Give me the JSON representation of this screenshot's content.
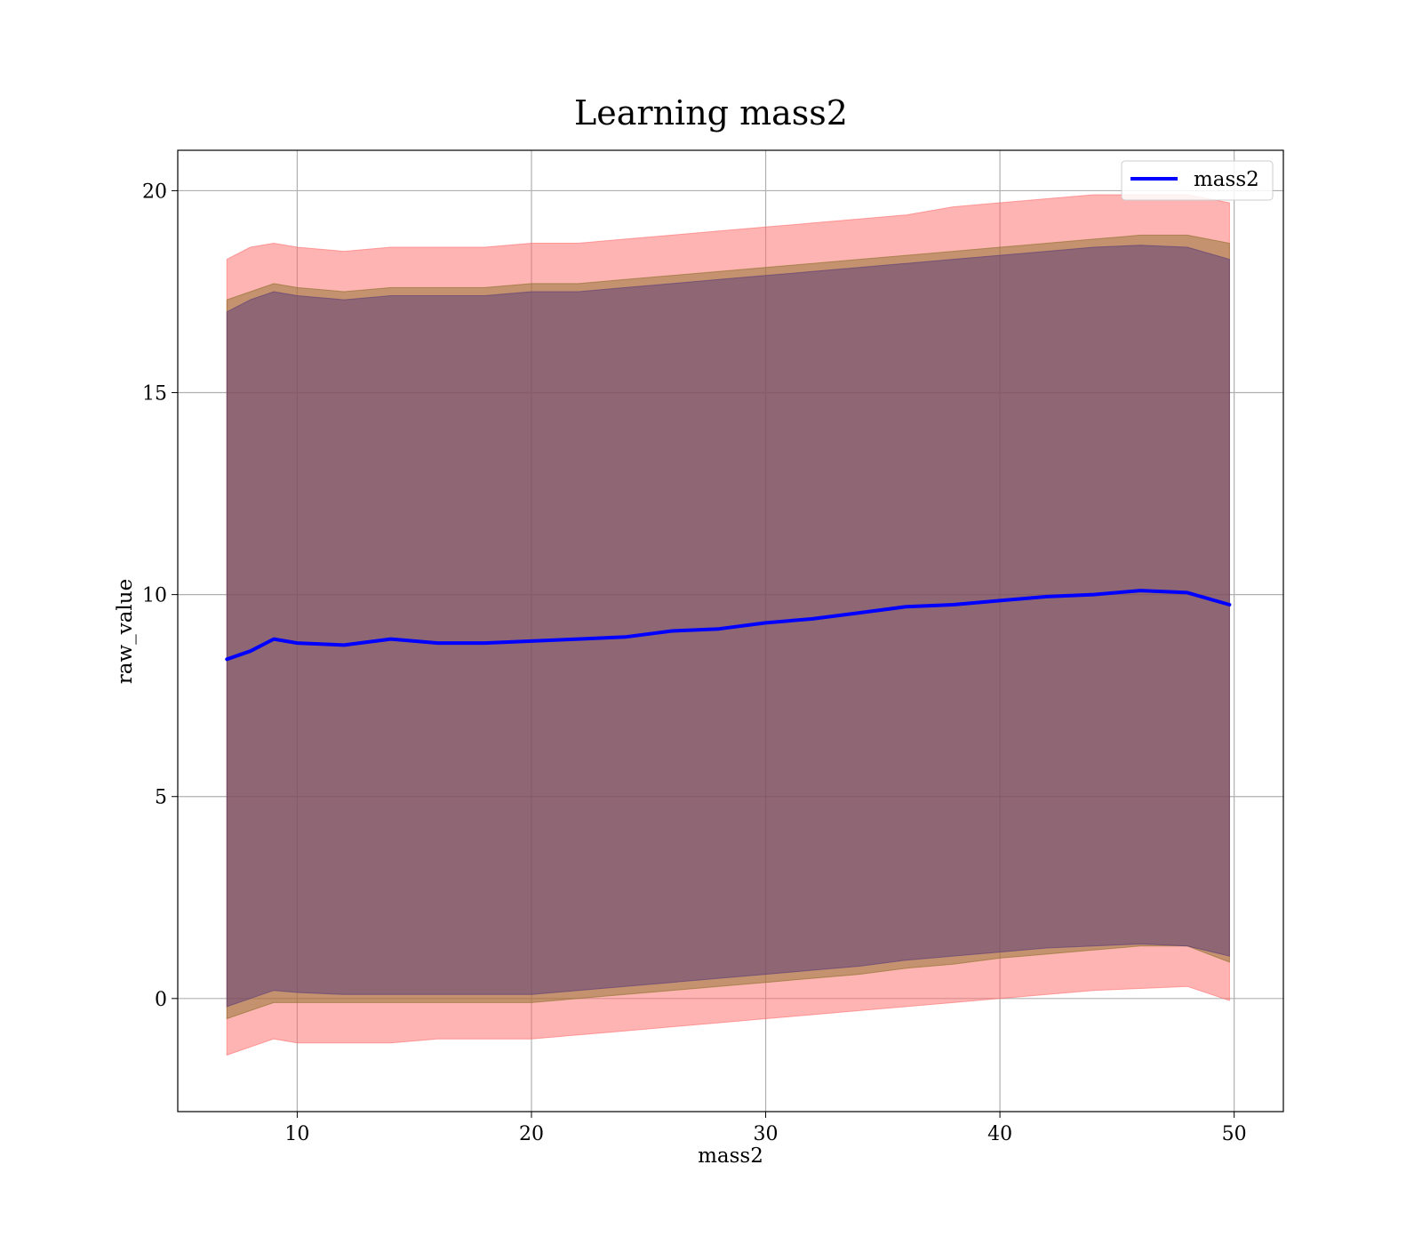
{
  "chart_data": {
    "type": "area",
    "title": "Learning mass2",
    "xlabel": "mass2",
    "ylabel": "raw_value",
    "xlim": [
      4.9,
      52.1
    ],
    "ylim": [
      -2.8,
      21.0
    ],
    "xticks": [
      10,
      20,
      30,
      40,
      50
    ],
    "yticks": [
      0,
      5,
      10,
      15,
      20
    ],
    "grid": true,
    "legend_position": "top-right",
    "x": [
      7.0,
      8.0,
      9.0,
      10.0,
      12.0,
      14.0,
      16.0,
      18.0,
      20.0,
      22.0,
      24.0,
      26.0,
      28.0,
      30.0,
      32.0,
      34.0,
      36.0,
      38.0,
      40.0,
      42.0,
      44.0,
      46.0,
      48.0,
      49.8
    ],
    "series": [
      {
        "name": "mass2",
        "color": "#0000ff",
        "values": [
          8.4,
          8.6,
          8.9,
          8.8,
          8.75,
          8.9,
          8.8,
          8.8,
          8.85,
          8.9,
          8.95,
          9.1,
          9.15,
          9.3,
          9.4,
          9.55,
          9.7,
          9.75,
          9.85,
          9.95,
          10.0,
          10.1,
          10.05,
          9.75
        ]
      }
    ],
    "bands": [
      {
        "color": "#ff6a6a",
        "opacity": 0.5,
        "upper": [
          18.3,
          18.6,
          18.7,
          18.6,
          18.5,
          18.6,
          18.6,
          18.6,
          18.7,
          18.7,
          18.8,
          18.9,
          19.0,
          19.1,
          19.2,
          19.3,
          19.4,
          19.6,
          19.7,
          19.8,
          19.9,
          19.9,
          19.9,
          19.7
        ],
        "lower": [
          -1.4,
          -1.2,
          -1.0,
          -1.1,
          -1.1,
          -1.1,
          -1.0,
          -1.0,
          -1.0,
          -0.9,
          -0.8,
          -0.7,
          -0.6,
          -0.5,
          -0.4,
          -0.3,
          -0.2,
          -0.1,
          0.0,
          0.1,
          0.2,
          0.25,
          0.3,
          -0.05
        ]
      },
      {
        "color": "#8a7028",
        "opacity": 0.5,
        "upper": [
          17.3,
          17.5,
          17.7,
          17.6,
          17.5,
          17.6,
          17.6,
          17.6,
          17.7,
          17.7,
          17.8,
          17.9,
          18.0,
          18.1,
          18.2,
          18.3,
          18.4,
          18.5,
          18.6,
          18.7,
          18.8,
          18.9,
          18.9,
          18.7
        ],
        "lower": [
          -0.5,
          -0.3,
          -0.1,
          -0.1,
          -0.1,
          -0.1,
          -0.1,
          -0.1,
          -0.1,
          0.0,
          0.1,
          0.2,
          0.3,
          0.4,
          0.5,
          0.6,
          0.75,
          0.85,
          1.0,
          1.1,
          1.2,
          1.3,
          1.3,
          0.9
        ]
      },
      {
        "color": "#5a3a7a",
        "opacity": 0.5,
        "upper": [
          17.0,
          17.3,
          17.5,
          17.4,
          17.3,
          17.4,
          17.4,
          17.4,
          17.5,
          17.5,
          17.6,
          17.7,
          17.8,
          17.9,
          18.0,
          18.1,
          18.2,
          18.3,
          18.4,
          18.5,
          18.6,
          18.65,
          18.6,
          18.3
        ],
        "lower": [
          -0.2,
          0.0,
          0.2,
          0.15,
          0.1,
          0.1,
          0.1,
          0.1,
          0.1,
          0.2,
          0.3,
          0.4,
          0.5,
          0.6,
          0.7,
          0.8,
          0.95,
          1.05,
          1.15,
          1.25,
          1.3,
          1.35,
          1.3,
          1.05
        ]
      }
    ]
  }
}
